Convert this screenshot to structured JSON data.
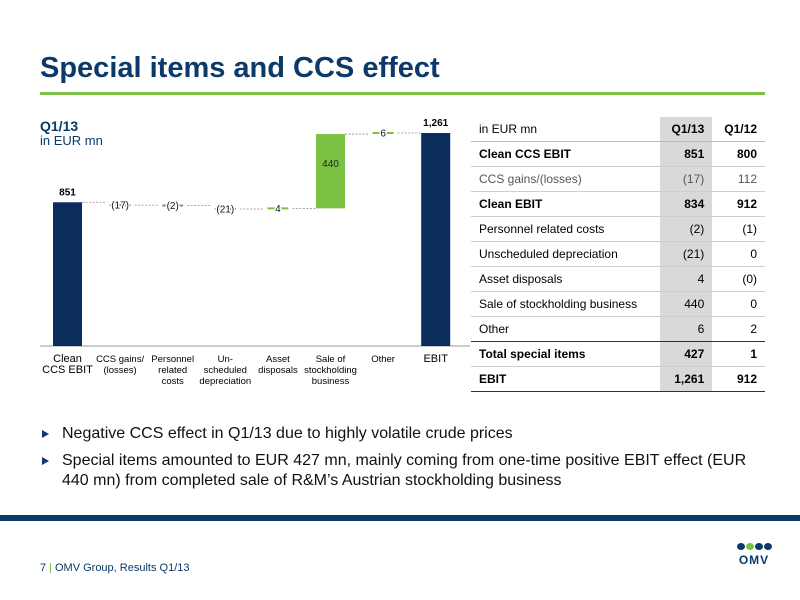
{
  "slide": {
    "title": "Special items and CCS effect"
  },
  "chart_head": {
    "period": "Q1/13",
    "unit": "in EUR mn"
  },
  "chart_data": {
    "type": "bar",
    "subtype": "waterfall",
    "categories": [
      [
        "Clean",
        "CCS EBIT"
      ],
      [
        "CCS gains/",
        "(losses)"
      ],
      [
        "Personnel",
        "related",
        "costs"
      ],
      [
        "Un-",
        "scheduled",
        "depreciation"
      ],
      [
        "Asset",
        "disposals"
      ],
      [
        "Sale of",
        "stockholding",
        "business"
      ],
      [
        "Other"
      ],
      [
        "EBIT"
      ]
    ],
    "values": [
      851,
      -17,
      -2,
      -21,
      4,
      440,
      6,
      1261
    ],
    "labels": [
      "851",
      "(17)",
      "(2)",
      "(21)",
      "4",
      "440",
      "6",
      "1,261"
    ],
    "kinds": [
      "total",
      "delta",
      "delta",
      "delta",
      "delta",
      "delta",
      "delta",
      "total"
    ],
    "ylim": [
      0,
      1350
    ],
    "colors": {
      "total": "#0b2d5e",
      "positive": "#7bc143",
      "connector": "#8c8c8c"
    }
  },
  "table": {
    "header": [
      "in EUR mn",
      "Q1/13",
      "Q1/12"
    ],
    "rows": [
      {
        "label": "Clean CCS EBIT",
        "q113": "851",
        "q112": "800",
        "style": "b"
      },
      {
        "label": "CCS gains/(losses)",
        "q113": "(17)",
        "q112": "112",
        "style": "g"
      },
      {
        "label": "Clean EBIT",
        "q113": "834",
        "q112": "912",
        "style": "b"
      },
      {
        "label": "Personnel related costs",
        "q113": "(2)",
        "q112": "(1)",
        "style": "n"
      },
      {
        "label": "Unscheduled depreciation",
        "q113": "(21)",
        "q112": "0",
        "style": "n"
      },
      {
        "label": "Asset disposals",
        "q113": "4",
        "q112": "(0)",
        "style": "n"
      },
      {
        "label": "Sale of stockholding business",
        "q113": "440",
        "q112": "0",
        "style": "n"
      },
      {
        "label": "Other",
        "q113": "6",
        "q112": "2",
        "style": "n"
      },
      {
        "label": "Total special items",
        "q113": "427",
        "q112": "1",
        "style": "b"
      },
      {
        "label": "EBIT",
        "q113": "1,261",
        "q112": "912",
        "style": "b"
      }
    ]
  },
  "bullets": [
    "Negative CCS effect in Q1/13 due to highly volatile crude prices",
    "Special items amounted to EUR 427 mn, mainly coming from one-time positive EBIT effect (EUR 440 mn) from completed sale of R&M’s Austrian stockholding business"
  ],
  "footer": {
    "page": "7",
    "text": "OMV Group, Results Q1/13"
  },
  "logo": {
    "word": "OMV"
  }
}
